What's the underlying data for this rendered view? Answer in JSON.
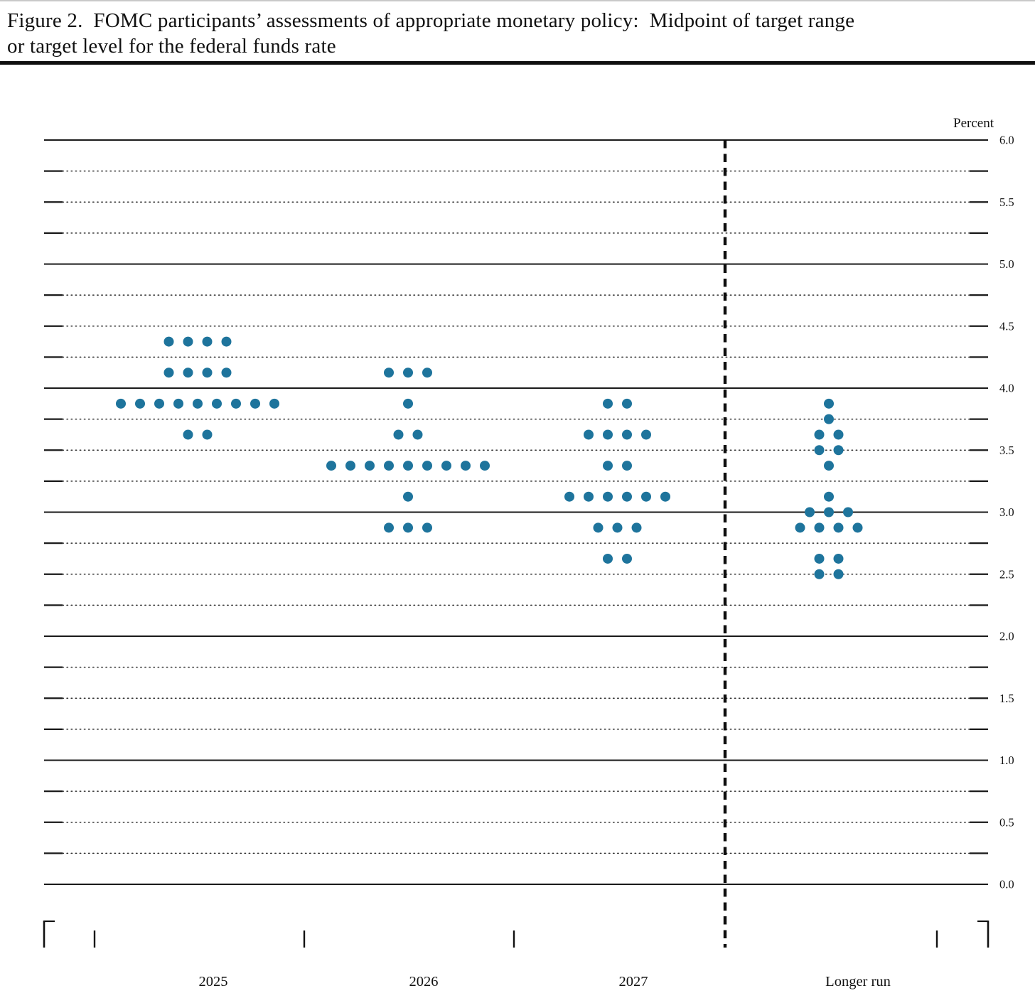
{
  "figure": {
    "title_line1": "Figure 2.  FOMC participants’ assessments of appropriate monetary policy:  Midpoint of target range",
    "title_line2": "or target level for the federal funds rate"
  },
  "chart_data": {
    "type": "scatter",
    "subtype": "fomc-dot-plot",
    "title": "Figure 2. FOMC participants’ assessments of appropriate monetary policy: Midpoint of target range or target level for the federal funds rate",
    "ylabel": "Percent",
    "ylim": [
      0.0,
      6.0
    ],
    "y_grid_step": 0.25,
    "y_label_step": 0.5,
    "y_tick_labels": [
      "6.0",
      "5.5",
      "5.0",
      "4.5",
      "4.0",
      "3.5",
      "3.0",
      "2.5",
      "2.0",
      "1.5",
      "1.0",
      "0.5",
      "0.0"
    ],
    "grid": "dotted-quarter-lines-solid-whole-lines",
    "legend": "none",
    "categories": [
      "2025",
      "2026",
      "2027",
      "Longer run"
    ],
    "separator": {
      "after_category": "2027",
      "style": "dashed-vertical-line"
    },
    "dot_color": "#1e749c",
    "participants_per_column": 19,
    "series": [
      {
        "category": "2025",
        "dots": [
          {
            "rate": 4.375,
            "count": 4
          },
          {
            "rate": 4.125,
            "count": 4
          },
          {
            "rate": 3.875,
            "count": 9
          },
          {
            "rate": 3.625,
            "count": 2
          }
        ]
      },
      {
        "category": "2026",
        "dots": [
          {
            "rate": 4.125,
            "count": 3
          },
          {
            "rate": 3.875,
            "count": 1
          },
          {
            "rate": 3.625,
            "count": 2
          },
          {
            "rate": 3.375,
            "count": 9
          },
          {
            "rate": 3.125,
            "count": 1
          },
          {
            "rate": 2.875,
            "count": 3
          }
        ]
      },
      {
        "category": "2027",
        "dots": [
          {
            "rate": 3.875,
            "count": 2
          },
          {
            "rate": 3.625,
            "count": 4
          },
          {
            "rate": 3.375,
            "count": 2
          },
          {
            "rate": 3.125,
            "count": 6
          },
          {
            "rate": 2.875,
            "count": 3
          },
          {
            "rate": 2.625,
            "count": 2
          }
        ]
      },
      {
        "category": "Longer run",
        "dots": [
          {
            "rate": 3.875,
            "count": 1
          },
          {
            "rate": 3.75,
            "count": 1
          },
          {
            "rate": 3.625,
            "count": 2
          },
          {
            "rate": 3.5,
            "count": 2
          },
          {
            "rate": 3.375,
            "count": 1
          },
          {
            "rate": 3.125,
            "count": 1
          },
          {
            "rate": 3.0,
            "count": 3
          },
          {
            "rate": 2.875,
            "count": 4
          },
          {
            "rate": 2.625,
            "count": 2
          },
          {
            "rate": 2.5,
            "count": 2
          }
        ]
      }
    ]
  }
}
